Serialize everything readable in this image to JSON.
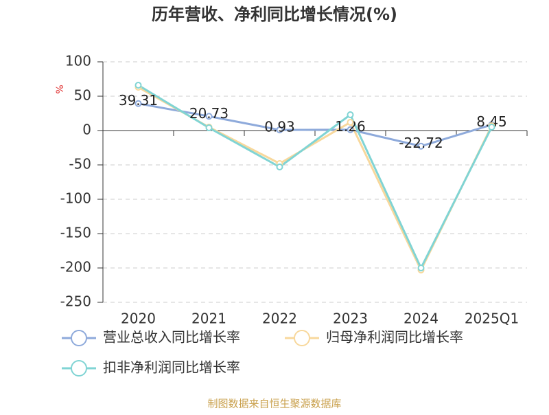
{
  "chart_data": {
    "type": "line",
    "title": "历年营收、净利同比增长情况(%)",
    "y_label": "%",
    "categories": [
      "2020",
      "2021",
      "2022",
      "2023",
      "2024",
      "2025Q1"
    ],
    "series": [
      {
        "name": "营业总收入同比增长率",
        "color": "#8eaadb",
        "values": [
          39.31,
          20.73,
          0.93,
          1.26,
          -22.72,
          8.45
        ],
        "data_labels": true
      },
      {
        "name": "归母净利润同比增长率",
        "color": "#f8d89c",
        "values": [
          63,
          5,
          -48,
          12,
          -203,
          7
        ],
        "data_labels": false
      },
      {
        "name": "扣非净利润同比增长率",
        "color": "#80d4d4",
        "values": [
          66,
          4,
          -53,
          23,
          -200,
          5
        ],
        "data_labels": false
      }
    ],
    "ylim": [
      -250,
      100
    ],
    "yticks": [
      -250,
      -200,
      -150,
      -100,
      -50,
      0,
      50,
      100
    ],
    "grid": true,
    "source": "制图数据来自恒生聚源数据库"
  }
}
